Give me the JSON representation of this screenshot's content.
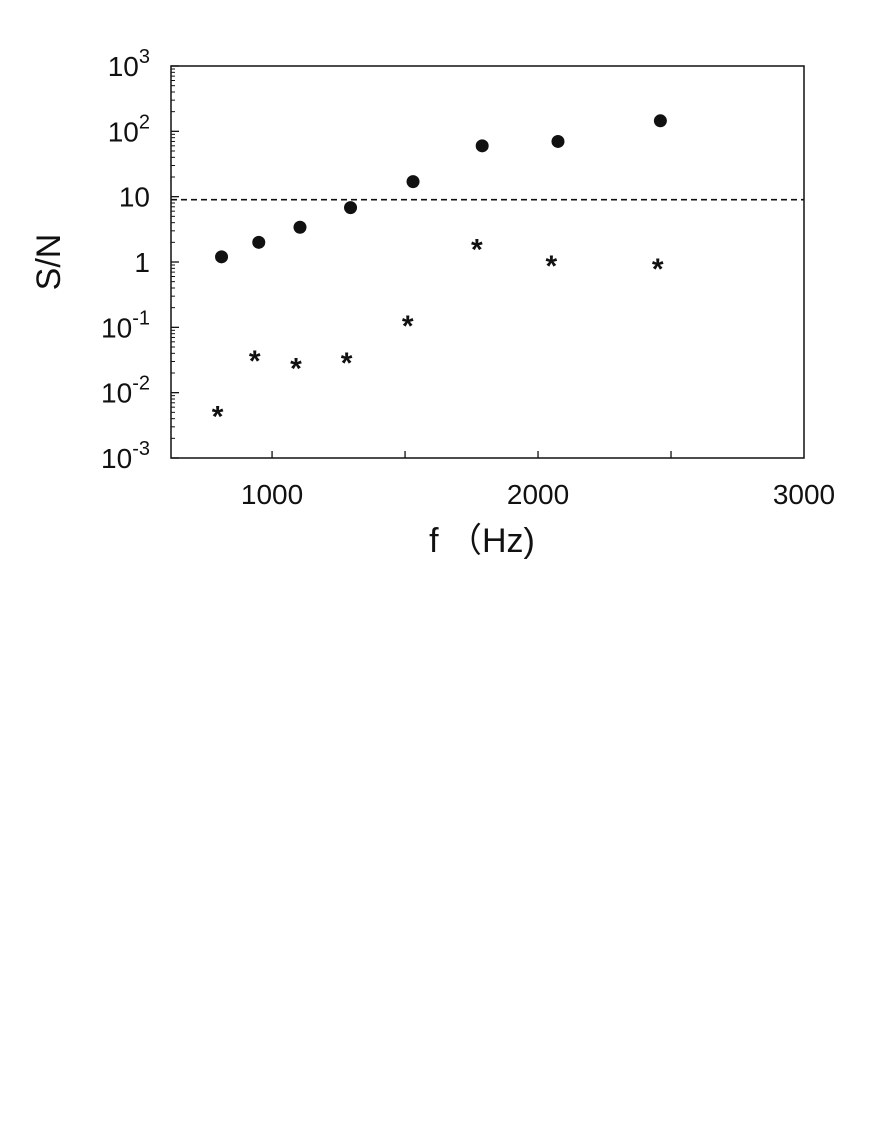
{
  "chart_data": {
    "type": "scatter",
    "title": "",
    "xlabel": "f （Hz)",
    "ylabel": "S/N",
    "xlim": [
      620,
      3000
    ],
    "ylim": [
      0.001,
      1000
    ],
    "x_scale": "linear",
    "y_scale": "log",
    "grid": false,
    "legend": "none",
    "x_ticks": [
      {
        "value": 1000,
        "label": "1000"
      },
      {
        "value": 2000,
        "label": "2000"
      },
      {
        "value": 3000,
        "label": "3000"
      }
    ],
    "y_ticks": [
      {
        "value": 0.001,
        "base": "10",
        "exp": "-3"
      },
      {
        "value": 0.01,
        "base": "10",
        "exp": "-2"
      },
      {
        "value": 0.1,
        "base": "10",
        "exp": "-1"
      },
      {
        "value": 1,
        "base": "1",
        "exp": ""
      },
      {
        "value": 10,
        "base": "10",
        "exp": ""
      },
      {
        "value": 100,
        "base": "10",
        "exp": "2"
      },
      {
        "value": 1000,
        "base": "10",
        "exp": "3"
      }
    ],
    "reference_line": {
      "y": 9,
      "style": "dashed"
    },
    "series": [
      {
        "marker": "circle",
        "color": "#111111",
        "x": [
          810,
          950,
          1105,
          1295,
          1530,
          1790,
          2075,
          2460
        ],
        "y": [
          1.2,
          2.0,
          3.4,
          6.8,
          17,
          60,
          70,
          145
        ]
      },
      {
        "marker": "asterisk",
        "color": "#111111",
        "x": [
          795,
          935,
          1090,
          1280,
          1510,
          1770,
          2050,
          2450
        ],
        "y": [
          0.005,
          0.035,
          0.027,
          0.033,
          0.12,
          1.8,
          1.0,
          0.9
        ]
      }
    ]
  }
}
